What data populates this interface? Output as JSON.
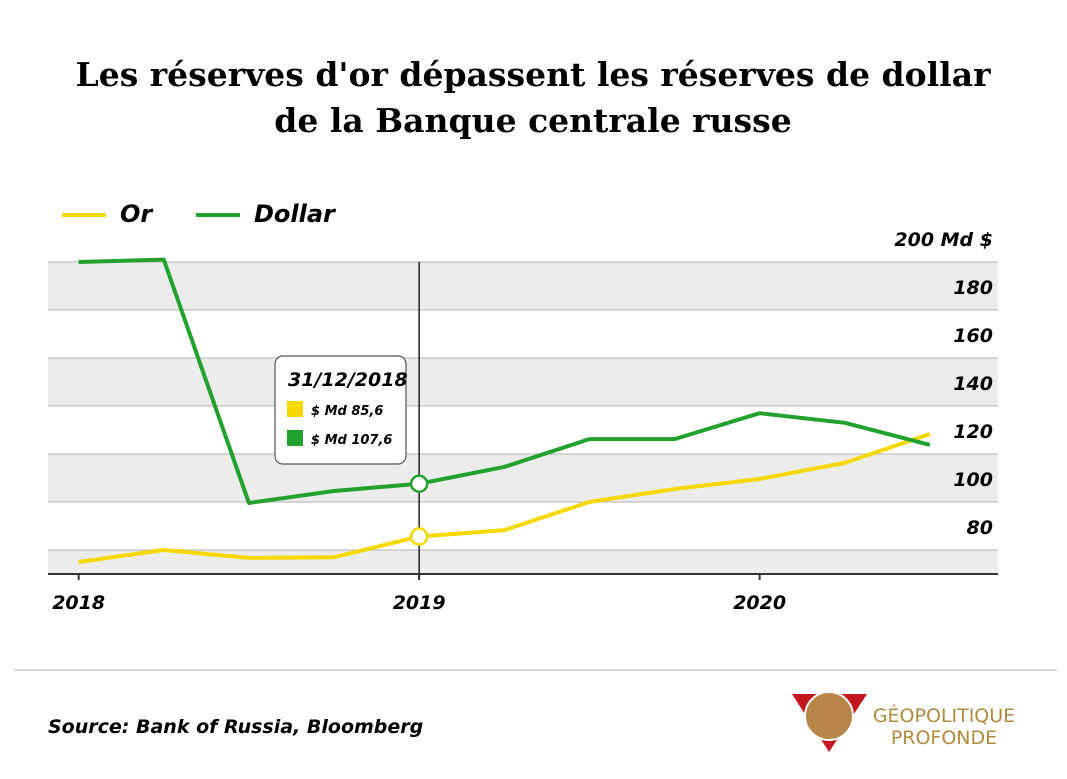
{
  "chart_data": {
    "type": "line",
    "title": [
      "Les réserves d'or dépassent les réserves de dollar",
      "de la Banque centrale russe"
    ],
    "x": [
      2018,
      2018.25,
      2018.5,
      2018.75,
      2019,
      2019.25,
      2019.5,
      2019.75,
      2020,
      2020.25,
      2020.5
    ],
    "xlim": [
      2017.91,
      2020.7
    ],
    "xticks": [
      2018,
      2019,
      2020
    ],
    "series": [
      {
        "name": "Or",
        "color": "#f5d800",
        "values": [
          75,
          80,
          76.7,
          77,
          85.6,
          88.3,
          100,
          105.4,
          109.6,
          116.3,
          128.3
        ]
      },
      {
        "name": "Dollar",
        "color": "#23a12f",
        "values": [
          200,
          201,
          99.6,
          104.6,
          107.6,
          114.6,
          126.2,
          126.2,
          137,
          133,
          123.8
        ]
      }
    ],
    "ylim": [
      70,
      200
    ],
    "yticks": [
      80,
      100,
      120,
      140,
      160,
      180,
      {
        "value": 200,
        "label": "200 Md $"
      }
    ],
    "grid": true,
    "annotation": {
      "x": 2019,
      "date": "31/12/2018",
      "items": [
        "$ Md 85,6",
        "$ Md 107,6"
      ]
    },
    "source": "Source: Bank of Russia, Bloomberg",
    "logo": [
      "GÉOPOLITIQUE",
      "PROFONDE"
    ]
  }
}
